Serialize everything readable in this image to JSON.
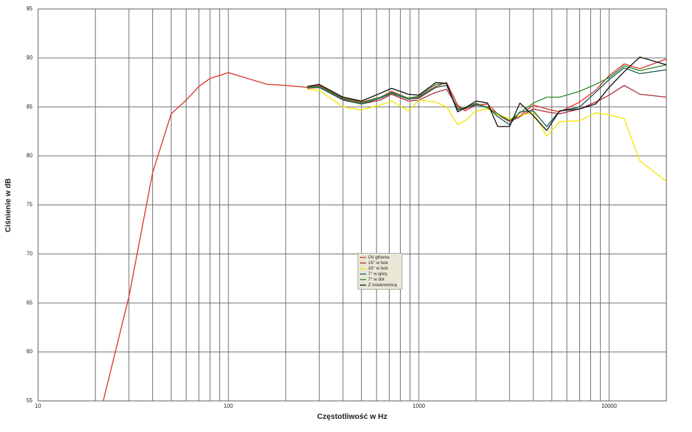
{
  "chart_data": {
    "type": "line",
    "x_label": "Częstotliwość w Hz",
    "y_label": "Ciśnienie w dB",
    "x_scale": "log",
    "xlim": [
      10,
      20000
    ],
    "xticks": [
      10,
      100,
      1000,
      10000
    ],
    "x_minor_ticks": [
      20,
      30,
      40,
      50,
      60,
      70,
      80,
      90,
      200,
      300,
      400,
      500,
      600,
      700,
      800,
      900,
      2000,
      3000,
      4000,
      5000,
      6000,
      7000,
      8000,
      9000
    ],
    "ylim": [
      55,
      95
    ],
    "yticks": [
      55,
      60,
      65,
      70,
      75,
      80,
      85,
      90,
      95
    ],
    "grid": true,
    "legend_position": "center",
    "x": [
      22,
      30,
      40,
      50,
      60,
      70,
      80,
      100,
      160,
      200,
      260,
      300,
      400,
      500,
      630,
      720,
      880,
      1000,
      1230,
      1400,
      1600,
      1750,
      2000,
      2300,
      2600,
      3000,
      3400,
      4000,
      4700,
      5500,
      7000,
      8500,
      10000,
      12000,
      14500,
      20000
    ],
    "series": [
      {
        "name": "Oś główna",
        "color": "#d9342b",
        "values": [
          55,
          65.6,
          78.3,
          84.3,
          85.7,
          87.1,
          87.9,
          88.5,
          87.3,
          87.2,
          87.0,
          87.2,
          86.0,
          85.5,
          86.0,
          86.6,
          85.9,
          86.0,
          87.1,
          87.5,
          85.2,
          84.6,
          85.2,
          85.3,
          84.3,
          83.6,
          84.1,
          85.2,
          84.8,
          84.5,
          85.5,
          86.7,
          88.2,
          89.4,
          88.9,
          89.9
        ]
      },
      {
        "name": "15° w bok",
        "color": "#b0303a",
        "values": [
          null,
          null,
          null,
          null,
          null,
          null,
          null,
          null,
          null,
          null,
          86.9,
          87.0,
          85.8,
          85.3,
          85.7,
          86.3,
          85.6,
          85.7,
          86.5,
          86.8,
          85.0,
          84.8,
          85.3,
          85.0,
          84.2,
          83.5,
          84.0,
          84.8,
          84.5,
          84.3,
          84.8,
          85.5,
          86.2,
          87.2,
          86.3,
          86.0
        ]
      },
      {
        "name": "30° w bok",
        "color": "#f2e600",
        "values": [
          null,
          null,
          null,
          null,
          null,
          null,
          null,
          null,
          null,
          null,
          86.8,
          86.7,
          85.0,
          84.7,
          85.2,
          85.6,
          84.6,
          85.7,
          85.5,
          85.0,
          83.2,
          83.6,
          84.6,
          84.8,
          84.2,
          83.8,
          84.1,
          84.5,
          82.0,
          83.5,
          83.6,
          84.4,
          84.2,
          83.8,
          79.5,
          77.4
        ]
      },
      {
        "name": "7° w górę",
        "color": "#1d5a5a",
        "values": [
          null,
          null,
          null,
          null,
          null,
          null,
          null,
          null,
          null,
          null,
          87.0,
          87.0,
          85.7,
          85.3,
          85.9,
          86.4,
          85.8,
          85.9,
          87.0,
          87.2,
          84.8,
          84.9,
          85.2,
          85.0,
          84.0,
          83.2,
          84.5,
          84.6,
          83.0,
          84.6,
          85.0,
          86.5,
          87.8,
          89.0,
          88.4,
          88.8
        ]
      },
      {
        "name": "7° w dół",
        "color": "#2f8a2f",
        "values": [
          null,
          null,
          null,
          null,
          null,
          null,
          null,
          null,
          null,
          null,
          87.0,
          87.1,
          85.9,
          85.4,
          86.0,
          86.5,
          85.9,
          86.1,
          87.3,
          87.4,
          84.7,
          84.9,
          85.4,
          84.9,
          84.3,
          83.6,
          84.4,
          85.4,
          86.0,
          86.0,
          86.6,
          87.3,
          88.0,
          89.2,
          88.7,
          89.3
        ]
      },
      {
        "name": "Z maskownicą",
        "color": "#111111",
        "values": [
          null,
          null,
          null,
          null,
          null,
          null,
          null,
          null,
          null,
          null,
          87.1,
          87.3,
          86.0,
          85.6,
          86.4,
          86.9,
          86.3,
          86.2,
          87.5,
          87.4,
          84.5,
          84.9,
          85.6,
          85.4,
          83.0,
          83.0,
          85.4,
          84.1,
          82.6,
          84.6,
          84.8,
          85.3,
          87.0,
          88.6,
          90.1,
          89.3
        ]
      }
    ]
  }
}
